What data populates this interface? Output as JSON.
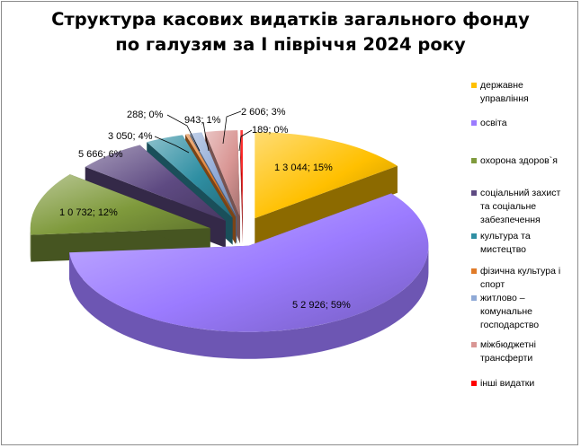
{
  "title": {
    "line1": "Структура касових видатків загального фонду",
    "line2": "по галузям за І півріччя 2024 року"
  },
  "chart_data": {
    "type": "pie",
    "title": "Структура касових видатків загального фонду по галузям за І півріччя 2024 року",
    "legend_position": "right",
    "series": [
      {
        "name": "державне управління",
        "value": 13044,
        "percent": 15,
        "label": "1 3 044; 15%",
        "color": "#ffc000"
      },
      {
        "name": "освіта",
        "value": 52926,
        "percent": 59,
        "label": "5 2 926; 59%",
        "color": "#9b7bff"
      },
      {
        "name": "охорона здоров`я",
        "value": 10732,
        "percent": 12,
        "label": "1 0 732; 12%",
        "color": "#7f9a3c"
      },
      {
        "name": "соціальний захист та соціальне забезпечення",
        "value": 5666,
        "percent": 6,
        "label": "5 666; 6%",
        "color": "#5e4a82"
      },
      {
        "name": "культура та мистецтво",
        "value": 3050,
        "percent": 4,
        "label": "3 050; 4%",
        "color": "#2f8fa3"
      },
      {
        "name": "фізична культура і спорт",
        "value": 288,
        "percent": 0,
        "label": "288; 0%",
        "color": "#e07b28"
      },
      {
        "name": "житлово – комунальне господарство",
        "value": 943,
        "percent": 1,
        "label": "943; 1%",
        "color": "#8fa9d6"
      },
      {
        "name": "міжбюджетні трансферти",
        "value": 2606,
        "percent": 3,
        "label": "2 606; 3%",
        "color": "#d99694"
      },
      {
        "name": "інші видатки",
        "value": 189,
        "percent": 0,
        "label": "189; 0%",
        "color": "#ff0000"
      }
    ]
  }
}
